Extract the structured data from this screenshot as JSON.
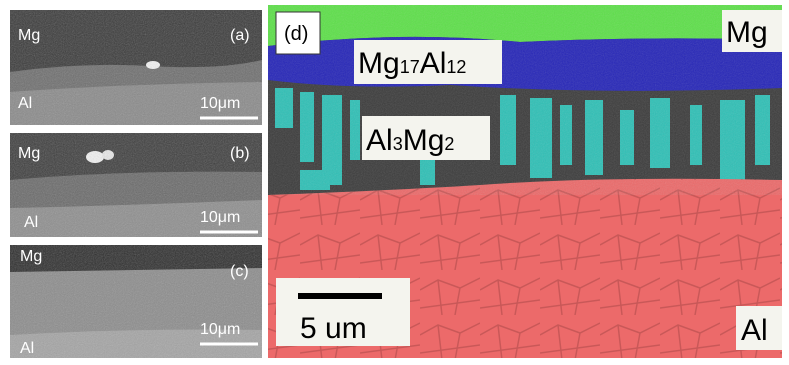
{
  "panels": [
    {
      "label": "(a)",
      "top_phase": "Mg",
      "bottom_phase": "Al",
      "scale_bar": "10μm"
    },
    {
      "label": "(b)",
      "top_phase": "Mg",
      "bottom_phase": "Al",
      "scale_bar": "10μm"
    },
    {
      "label": "(c)",
      "top_phase": "Mg",
      "bottom_phase": "Al",
      "scale_bar": "10μm"
    }
  ],
  "map": {
    "label": "(d)",
    "top_phase": "Mg",
    "bottom_phase": "Al",
    "imc1": [
      "Mg",
      "17",
      "Al",
      "12"
    ],
    "imc2": [
      "Al",
      "3",
      "Mg",
      "2"
    ],
    "scale_bar": "5 um"
  }
}
